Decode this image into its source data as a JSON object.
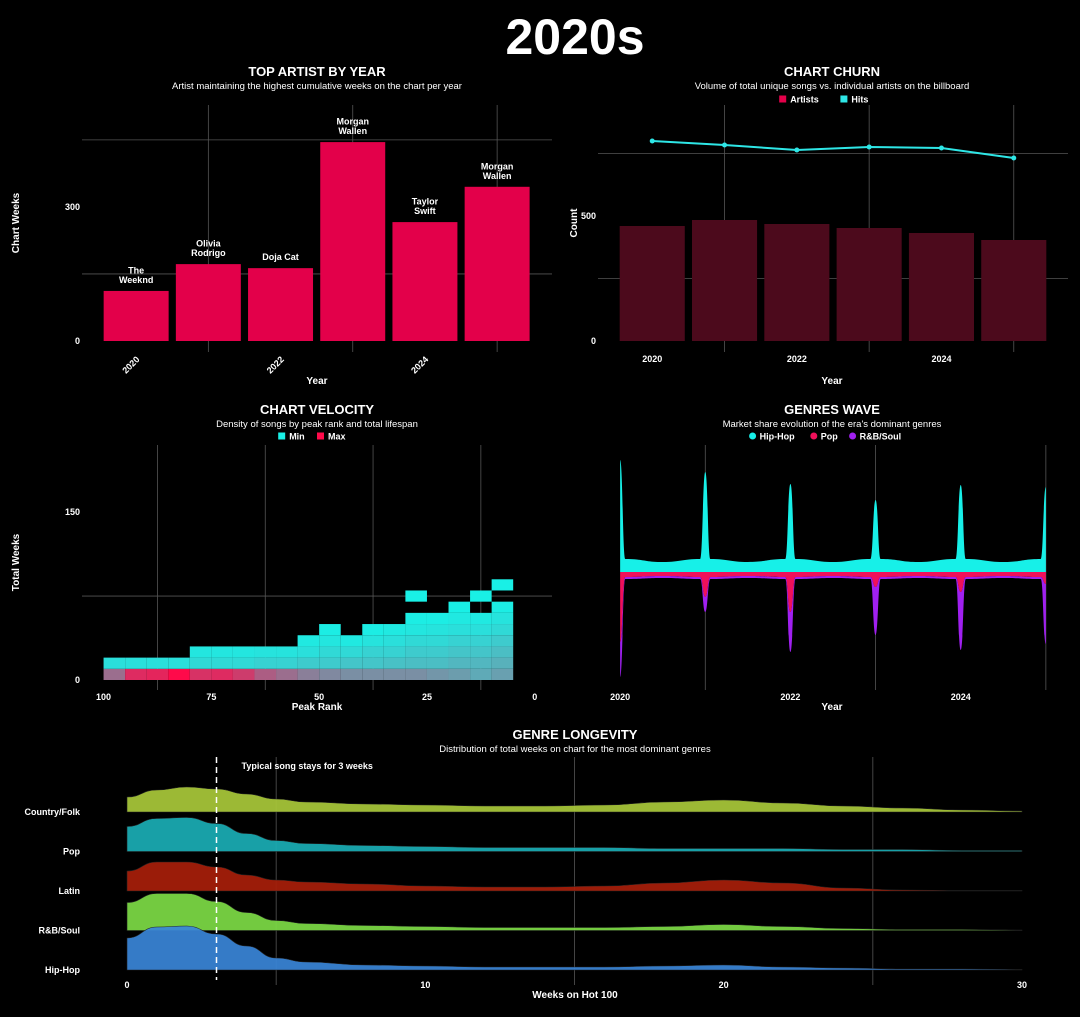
{
  "title": "2020s",
  "chart_data": [
    {
      "type": "bar",
      "title": "TOP ARTIST BY YEAR",
      "subtitle": "Artist maintaining the highest cumulative weeks on the chart per year",
      "x_label": "Year",
      "y_label": "Chart Weeks",
      "x": [
        2020,
        2021,
        2022,
        2023,
        2024,
        2025
      ],
      "values": [
        112,
        172,
        163,
        445,
        266,
        345
      ],
      "bar_labels": [
        "The\nWeeknd",
        "Olivia\nRodrigo",
        "Doja Cat",
        "Morgan\nWallen",
        "Taylor\nSwift",
        "Morgan\nWallen"
      ],
      "color": "#e3004a",
      "xlim": [
        2019.25,
        2025.76
      ],
      "ylim": [
        0,
        528
      ],
      "xticks": [
        2020,
        2022,
        2024
      ],
      "minor_xticks": [
        2021,
        2023,
        2025
      ],
      "yticks": [
        0,
        300
      ],
      "minor_yticks": [
        150,
        450
      ],
      "grid": true
    },
    {
      "type": "bar_line",
      "title": "CHART CHURN",
      "subtitle": "Volume of total unique songs vs. individual artists on the billboard",
      "x_label": "Year",
      "y_label": "Count",
      "x": [
        2020,
        2021,
        2022,
        2023,
        2024,
        2025
      ],
      "series": [
        {
          "name": "Artists",
          "color": "#4c0a1c",
          "legend_color": "#e3004a",
          "kind": "bar",
          "values": [
            460,
            484,
            468,
            452,
            432,
            404
          ]
        },
        {
          "name": "Hits",
          "color": "#2ee6e6",
          "legend_color": "#2ee6e6",
          "kind": "line",
          "values": [
            800,
            784,
            764,
            776,
            772,
            732
          ]
        }
      ],
      "xlim": [
        2019.25,
        2025.75
      ],
      "ylim": [
        0,
        944
      ],
      "xticks": [
        2020,
        2022,
        2024
      ],
      "minor_xticks": [
        2021,
        2023,
        2025
      ],
      "yticks": [
        0,
        500
      ],
      "minor_yticks": [
        250,
        750
      ],
      "grid": true
    },
    {
      "type": "heatmap",
      "title": "CHART VELOCITY",
      "subtitle": "Density of songs by peak rank and total lifespan",
      "x_label": "Peak Rank",
      "y_label": "Total Weeks",
      "legend": [
        {
          "name": "Min",
          "color": "#19f0e6"
        },
        {
          "name": "Max",
          "color": "#ff0a4a"
        }
      ],
      "bin_size": [
        5,
        10
      ],
      "x": [
        95,
        95,
        90,
        90,
        85,
        85,
        80,
        80,
        75,
        75,
        75,
        70,
        70,
        70,
        65,
        65,
        65,
        60,
        60,
        60,
        55,
        55,
        55,
        50,
        50,
        50,
        50,
        45,
        45,
        45,
        45,
        45,
        40,
        40,
        40,
        40,
        35,
        35,
        35,
        35,
        35,
        30,
        30,
        30,
        30,
        30,
        25,
        25,
        25,
        25,
        25,
        25,
        25,
        20,
        20,
        20,
        20,
        20,
        20,
        15,
        15,
        15,
        15,
        15,
        15,
        15,
        10,
        10,
        10,
        10,
        10,
        10,
        10,
        5,
        5,
        5,
        5,
        5,
        5,
        5,
        5
      ],
      "y": [
        0,
        10,
        0,
        10,
        0,
        10,
        0,
        10,
        0,
        10,
        20,
        0,
        10,
        20,
        0,
        10,
        20,
        0,
        10,
        20,
        0,
        10,
        20,
        0,
        10,
        20,
        30,
        0,
        10,
        20,
        30,
        40,
        0,
        10,
        20,
        30,
        0,
        10,
        20,
        30,
        40,
        0,
        10,
        20,
        30,
        40,
        0,
        10,
        20,
        30,
        40,
        50,
        70,
        0,
        10,
        20,
        30,
        40,
        50,
        0,
        10,
        20,
        30,
        40,
        50,
        60,
        0,
        10,
        20,
        30,
        40,
        50,
        70,
        0,
        10,
        20,
        30,
        40,
        50,
        60,
        80
      ],
      "values": [
        40,
        6,
        60,
        6,
        62,
        6,
        70,
        6,
        58,
        8,
        4,
        60,
        8,
        4,
        55,
        8,
        4,
        45,
        10,
        5,
        40,
        10,
        5,
        35,
        12,
        6,
        3,
        32,
        12,
        8,
        4,
        2,
        30,
        14,
        8,
        3,
        30,
        14,
        10,
        5,
        2,
        30,
        15,
        10,
        6,
        3,
        30,
        16,
        12,
        8,
        4,
        2,
        1,
        28,
        16,
        12,
        8,
        5,
        2,
        26,
        18,
        14,
        10,
        6,
        3,
        1,
        22,
        18,
        14,
        10,
        6,
        3,
        1,
        25,
        20,
        16,
        12,
        8,
        5,
        2,
        1
      ],
      "xlim": [
        105,
        -4
      ],
      "ylim": [
        0,
        210
      ],
      "xticks": [
        100,
        75,
        50,
        25,
        0
      ],
      "minor_xticks": [
        87.5,
        62.5,
        37.5,
        12.5
      ],
      "yticks": [
        0,
        150
      ],
      "minor_yticks": [
        75
      ],
      "grid": true
    },
    {
      "type": "stream",
      "title": "GENRES WAVE",
      "subtitle": "Market share evolution of the era's dominant genres",
      "x_label": "Year",
      "x": [
        2020,
        2020.06,
        2020.5,
        2020.94,
        2021,
        2021.06,
        2021.5,
        2021.94,
        2022,
        2022.06,
        2022.5,
        2022.94,
        2023,
        2023.06,
        2023.5,
        2023.94,
        2024,
        2024.06,
        2024.5,
        2024.94,
        2025
      ],
      "series": [
        {
          "name": "Hip-Hop",
          "color": "#17f0e8",
          "values": [
            112,
            13,
            10,
            13,
            100,
            13,
            10,
            13,
            88,
            13,
            10,
            13,
            72,
            13,
            10,
            13,
            87,
            13,
            10,
            13,
            85
          ]
        },
        {
          "name": "Pop",
          "color": "#f0105a",
          "values": [
            70,
            5,
            4,
            5,
            25,
            5,
            4,
            5,
            40,
            5,
            4,
            5,
            15,
            5,
            4,
            5,
            20,
            5,
            4,
            5,
            12
          ]
        },
        {
          "name": "R&B/Soul",
          "color": "#a020f0",
          "values": [
            35,
            2,
            2,
            2,
            15,
            2,
            2,
            2,
            40,
            2,
            2,
            2,
            48,
            2,
            2,
            2,
            58,
            2,
            2,
            2,
            60
          ]
        }
      ],
      "xlim": [
        2019.74,
        2025.26
      ],
      "xticks": [
        2020,
        2022,
        2024
      ],
      "minor_xticks": [
        2021,
        2023,
        2025
      ],
      "grid": true
    },
    {
      "type": "ridgeline",
      "title": "GENRE LONGEVITY",
      "subtitle": "Distribution of total weeks on chart for the most dominant genres",
      "x_label": "Weeks on Hot 100",
      "reference_line": 3,
      "annotation": "Typical song stays for 3 weeks",
      "x": [
        0,
        1,
        2,
        3,
        4,
        5,
        6,
        8,
        10,
        12,
        14,
        16,
        18,
        20,
        22,
        24,
        26,
        28,
        30
      ],
      "series": [
        {
          "name": "Country/Folk",
          "color": "#a9c93a",
          "values": [
            15,
            22,
            25,
            23,
            18,
            13,
            10,
            8,
            7,
            6,
            6,
            7,
            10,
            12,
            9,
            6,
            4,
            2,
            1
          ]
        },
        {
          "name": "Pop",
          "color": "#1aaeb5",
          "values": [
            25,
            33,
            34,
            28,
            18,
            11,
            8,
            6,
            5,
            4,
            4,
            4,
            3,
            3,
            3,
            2,
            2,
            1,
            1
          ]
        },
        {
          "name": "Latin",
          "color": "#a81e0a",
          "values": [
            20,
            29,
            29,
            24,
            16,
            11,
            9,
            7,
            5,
            4,
            4,
            5,
            8,
            11,
            8,
            3,
            1,
            0.5,
            0.5
          ]
        },
        {
          "name": "R&B/Soul",
          "color": "#7ddb45",
          "values": [
            28,
            37,
            37,
            29,
            18,
            10,
            7,
            5,
            4,
            3,
            3,
            3,
            4,
            6,
            4,
            2,
            1,
            1,
            0.5
          ]
        },
        {
          "name": "Hip-Hop",
          "color": "#3a85d8",
          "values": [
            32,
            43,
            44,
            36,
            24,
            12,
            8,
            5,
            4,
            3,
            3,
            3,
            4,
            5,
            3,
            2,
            1,
            1,
            0.5
          ]
        }
      ],
      "xlim": [
        0,
        30
      ],
      "xticks": [
        0,
        10,
        20,
        30
      ],
      "minor_xticks": [
        5,
        15,
        25
      ],
      "grid": true
    }
  ]
}
